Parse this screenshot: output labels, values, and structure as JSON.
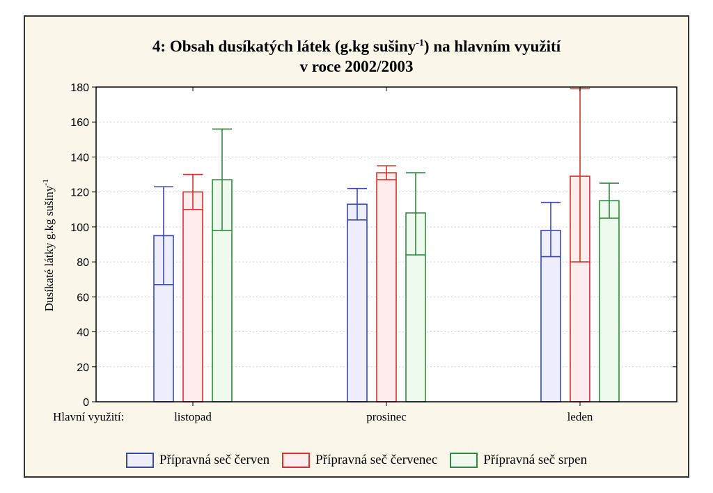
{
  "chart_data": {
    "type": "bar",
    "title_line1": "4: Obsah dusíkatých látek (g.kg sušiny",
    "title_sup": "-1",
    "title_line1_end": ") na hlavním využití",
    "title_line2": "v roce 2002/2003",
    "ylabel": "Dusíkaté látky g.kg sušiny",
    "ylabel_sup": "-1",
    "xlabel": "Hlavní využití:",
    "ylim": [
      0,
      180
    ],
    "yticks": [
      "0",
      "20",
      "40",
      "60",
      "80",
      "100",
      "120",
      "140",
      "160",
      "180"
    ],
    "grid": true,
    "categories": [
      "listopad",
      "prosinec",
      "leden"
    ],
    "series": [
      {
        "name": "Přípravná seč červen",
        "color": "#3a48a8",
        "fill": "#eeeeff",
        "values": [
          95,
          113,
          98
        ],
        "err_low": [
          67,
          104,
          83
        ],
        "err_high": [
          123,
          122,
          114
        ]
      },
      {
        "name": "Přípravná seč červenec",
        "color": "#d9302c",
        "fill": "#ffecec",
        "values": [
          120,
          131,
          129
        ],
        "err_low": [
          110,
          127,
          80
        ],
        "err_high": [
          130,
          135,
          179
        ]
      },
      {
        "name": "Přípravná seč srpen",
        "color": "#2e8a3e",
        "fill": "#eefaee",
        "values": [
          127,
          108,
          115
        ],
        "err_low": [
          98,
          84,
          105
        ],
        "err_high": [
          156,
          131,
          125
        ]
      }
    ]
  }
}
